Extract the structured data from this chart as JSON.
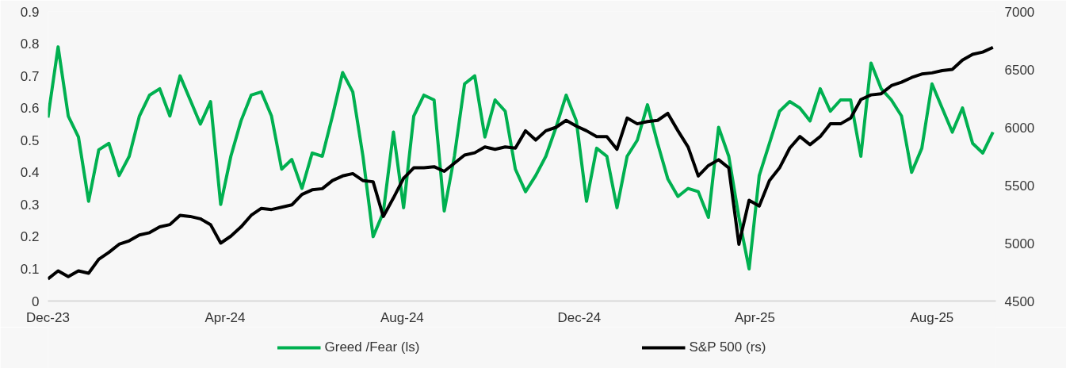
{
  "chart_data": {
    "type": "line",
    "x": [
      "2023-12-01",
      "2023-12-08",
      "2023-12-15",
      "2023-12-22",
      "2023-12-29",
      "2024-01-05",
      "2024-01-12",
      "2024-01-19",
      "2024-01-26",
      "2024-02-02",
      "2024-02-09",
      "2024-02-16",
      "2024-02-23",
      "2024-03-01",
      "2024-03-08",
      "2024-03-15",
      "2024-03-22",
      "2024-03-29",
      "2024-04-05",
      "2024-04-12",
      "2024-04-19",
      "2024-04-26",
      "2024-05-03",
      "2024-05-10",
      "2024-05-17",
      "2024-05-24",
      "2024-05-31",
      "2024-06-07",
      "2024-06-14",
      "2024-06-21",
      "2024-06-28",
      "2024-07-05",
      "2024-07-12",
      "2024-07-19",
      "2024-07-26",
      "2024-08-02",
      "2024-08-09",
      "2024-08-16",
      "2024-08-23",
      "2024-08-30",
      "2024-09-06",
      "2024-09-13",
      "2024-09-20",
      "2024-09-27",
      "2024-10-04",
      "2024-10-11",
      "2024-10-18",
      "2024-10-25",
      "2024-11-01",
      "2024-11-08",
      "2024-11-15",
      "2024-11-22",
      "2024-11-29",
      "2024-12-06",
      "2024-12-13",
      "2024-12-20",
      "2024-12-27",
      "2025-01-03",
      "2025-01-10",
      "2025-01-17",
      "2025-01-24",
      "2025-01-31",
      "2025-02-07",
      "2025-02-14",
      "2025-02-21",
      "2025-02-28",
      "2025-03-07",
      "2025-03-14",
      "2025-03-21",
      "2025-03-28",
      "2025-04-04",
      "2025-04-11",
      "2025-04-18",
      "2025-04-25",
      "2025-05-02",
      "2025-05-09",
      "2025-05-16",
      "2025-05-23",
      "2025-05-30",
      "2025-06-06",
      "2025-06-13",
      "2025-06-20",
      "2025-06-27",
      "2025-07-04",
      "2025-07-11",
      "2025-07-18",
      "2025-07-25",
      "2025-08-01",
      "2025-08-08",
      "2025-08-15",
      "2025-08-22",
      "2025-08-29",
      "2025-09-05",
      "2025-09-12"
    ],
    "series": [
      {
        "name": "Greed /Fear (ls)",
        "color": "#00b050",
        "values": [
          0.57,
          0.79,
          0.575,
          0.51,
          0.31,
          0.47,
          0.49,
          0.39,
          0.45,
          0.575,
          0.64,
          0.66,
          0.575,
          0.7,
          0.625,
          0.55,
          0.62,
          0.3,
          0.45,
          0.56,
          0.64,
          0.65,
          0.575,
          0.41,
          0.44,
          0.35,
          0.46,
          0.45,
          0.575,
          0.71,
          0.65,
          0.45,
          0.2,
          0.275,
          0.525,
          0.29,
          0.575,
          0.64,
          0.625,
          0.28,
          0.45,
          0.675,
          0.7,
          0.51,
          0.625,
          0.59,
          0.41,
          0.34,
          0.39,
          0.45,
          0.54,
          0.64,
          0.56,
          0.31,
          0.475,
          0.45,
          0.29,
          0.45,
          0.5,
          0.61,
          0.49,
          0.38,
          0.325,
          0.35,
          0.34,
          0.26,
          0.54,
          0.45,
          0.26,
          0.1,
          0.39,
          0.49,
          0.59,
          0.62,
          0.6,
          0.56,
          0.66,
          0.59,
          0.625,
          0.625,
          0.45,
          0.74,
          0.66,
          0.625,
          0.575,
          0.4,
          0.475,
          0.675,
          0.6,
          0.525,
          0.6,
          0.49,
          0.46,
          0.525
        ]
      },
      {
        "name": "S&P 500 (rs)",
        "color": "#000000",
        "axis": "y2",
        "values": [
          4690,
          4760,
          4710,
          4760,
          4740,
          4860,
          4920,
          4990,
          5020,
          5070,
          5090,
          5140,
          5160,
          5240,
          5230,
          5210,
          5160,
          5000,
          5060,
          5140,
          5240,
          5300,
          5290,
          5310,
          5330,
          5420,
          5460,
          5470,
          5540,
          5580,
          5600,
          5540,
          5530,
          5230,
          5390,
          5560,
          5650,
          5650,
          5660,
          5620,
          5690,
          5760,
          5780,
          5830,
          5810,
          5830,
          5820,
          5970,
          5890,
          5970,
          6000,
          6060,
          6010,
          5970,
          5920,
          5920,
          5810,
          6080,
          6030,
          6050,
          6060,
          6120,
          5970,
          5830,
          5580,
          5670,
          5720,
          5650,
          4990,
          5370,
          5320,
          5540,
          5650,
          5820,
          5920,
          5850,
          5920,
          6030,
          6030,
          6080,
          6240,
          6280,
          6290,
          6360,
          6390,
          6430,
          6460,
          6470,
          6490,
          6500,
          6580,
          6630,
          6650,
          6690
        ]
      }
    ],
    "xlim": [
      "2023-12-01",
      "2025-09-14"
    ],
    "xticks": [
      {
        "value": "2023-12-01",
        "label": "Dec-23"
      },
      {
        "value": "2024-04-01",
        "label": "Apr-24"
      },
      {
        "value": "2024-08-01",
        "label": "Aug-24"
      },
      {
        "value": "2024-12-01",
        "label": "Dec-24"
      },
      {
        "value": "2025-04-01",
        "label": "Apr-25"
      },
      {
        "value": "2025-08-01",
        "label": "Aug-25"
      }
    ],
    "ylim": [
      0,
      0.9
    ],
    "yticks": [
      0,
      0.1,
      0.2,
      0.3,
      0.4,
      0.5,
      0.6,
      0.7,
      0.8,
      0.9
    ],
    "y2lim": [
      4500,
      7000
    ],
    "y2ticks": [
      4500,
      5000,
      5500,
      6000,
      6500,
      7000
    ],
    "grid": false,
    "legend": "bottom",
    "line_style": "solid",
    "marker": "none"
  }
}
